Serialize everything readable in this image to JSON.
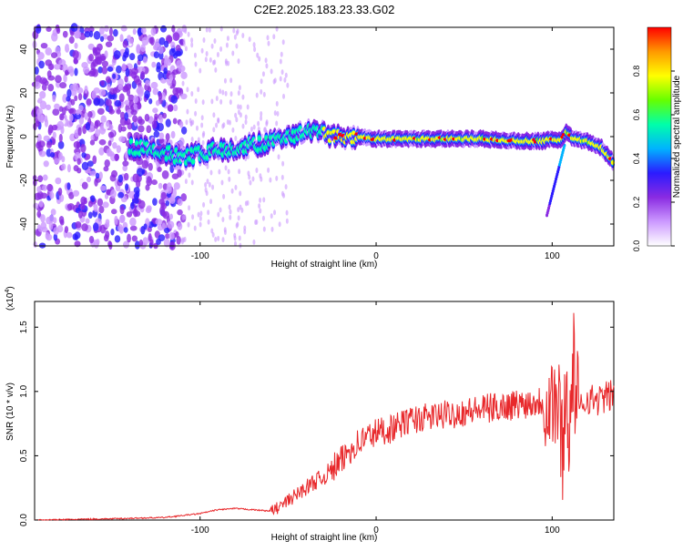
{
  "title": "C2E2.2025.183.23.33.G02",
  "chart_data": [
    {
      "type": "heatmap",
      "xlabel": "Height of straight line (km)",
      "ylabel": "Frequency (Hz)",
      "xlim": [
        -194,
        135
      ],
      "ylim": [
        -50,
        50
      ],
      "x_ticks": [
        -100,
        0,
        100
      ],
      "y_ticks": [
        40,
        20,
        0,
        -20,
        -40
      ],
      "colorbar": {
        "label": "Normalized spectral amplitude",
        "range": [
          0,
          1
        ],
        "ticks": [
          0.0,
          0.2,
          0.4,
          0.6,
          0.8
        ],
        "colors": [
          "#ffffff",
          "#cc99ff",
          "#8a2be2",
          "#2b1bff",
          "#00b3ff",
          "#00ffaa",
          "#66ff00",
          "#ffff00",
          "#ff9900",
          "#ff0000"
        ]
      },
      "ridge": {
        "x": [
          -140,
          -125,
          -110,
          -100,
          -90,
          -80,
          -70,
          -60,
          -50,
          -40,
          -30,
          -20,
          -10,
          0,
          20,
          40,
          60,
          80,
          95,
          100,
          105,
          108,
          112,
          120,
          128,
          135
        ],
        "y": [
          -5,
          -6,
          -10,
          -8,
          -6,
          -5,
          -4,
          -2,
          0,
          2,
          1,
          0,
          0,
          -1,
          -1,
          -1,
          -1,
          -2,
          -2,
          -1,
          -2,
          2,
          -1,
          -2,
          -5,
          -12
        ]
      }
    },
    {
      "type": "line",
      "xlabel": "Height of straight line (km)",
      "ylabel": "SNR (10 * v/v)",
      "y_multiplier": "(x10",
      "y_multiplier_exp": "4",
      "y_multiplier_close": ")",
      "xlim": [
        -194,
        135
      ],
      "ylim": [
        0,
        1.7
      ],
      "x_ticks": [
        -100,
        0,
        100
      ],
      "y_ticks": [
        0.0,
        0.5,
        1.0,
        1.5
      ],
      "color": "#e8282b",
      "series": [
        {
          "x": [
            -194,
            -150,
            -120,
            -100,
            -90,
            -80,
            -70,
            -60,
            -55,
            -50,
            -45,
            -40,
            -35,
            -30,
            -25,
            -20,
            -15,
            -10,
            -5,
            0,
            10,
            20,
            30,
            40,
            50,
            60,
            70,
            80,
            90,
            95,
            100,
            103,
            106,
            108,
            110,
            112,
            115,
            120,
            125,
            130,
            135
          ],
          "y": [
            0.0,
            0.01,
            0.02,
            0.05,
            0.08,
            0.09,
            0.08,
            0.07,
            0.1,
            0.15,
            0.2,
            0.25,
            0.3,
            0.33,
            0.4,
            0.45,
            0.55,
            0.6,
            0.65,
            0.68,
            0.72,
            0.78,
            0.8,
            0.82,
            0.84,
            0.86,
            0.88,
            0.9,
            0.92,
            0.93,
            0.95,
            0.9,
            0.6,
            1.0,
            0.7,
            1.2,
            0.85,
            0.95,
            0.93,
            0.95,
            0.98
          ]
        }
      ]
    }
  ]
}
